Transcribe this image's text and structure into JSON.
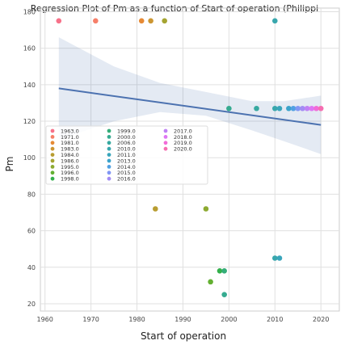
{
  "chart_data": {
    "type": "scatter",
    "title": "Regression Plot of Pm as a function of Start of operation (Philippi",
    "xlabel": "Start of operation",
    "ylabel": "Pm",
    "xlim": [
      1959,
      2024
    ],
    "ylim": [
      16,
      182
    ],
    "xticks": [
      1960,
      1970,
      1980,
      1990,
      2000,
      2010,
      2020
    ],
    "yticks": [
      20,
      40,
      60,
      80,
      100,
      120,
      140,
      160,
      180
    ],
    "grid": true,
    "legend_placement": "center-left",
    "series": [
      {
        "name": "1963.0",
        "color": "#f77189",
        "points": [
          [
            1963,
            175
          ]
        ]
      },
      {
        "name": "1971.0",
        "color": "#f67f69",
        "points": [
          [
            1971,
            175
          ]
        ]
      },
      {
        "name": "1981.0",
        "color": "#e68a35",
        "points": [
          [
            1981,
            175
          ]
        ]
      },
      {
        "name": "1983.0",
        "color": "#cc9632",
        "points": [
          [
            1983,
            175
          ]
        ]
      },
      {
        "name": "1984.0",
        "color": "#b89d31",
        "points": [
          [
            1984,
            72
          ]
        ]
      },
      {
        "name": "1986.0",
        "color": "#a5a431",
        "points": [
          [
            1986,
            175
          ]
        ]
      },
      {
        "name": "1995.0",
        "color": "#8daa31",
        "points": [
          [
            1995,
            72
          ]
        ]
      },
      {
        "name": "1996.0",
        "color": "#63b032",
        "points": [
          [
            1996,
            32
          ]
        ]
      },
      {
        "name": "1998.0",
        "color": "#33b04b",
        "points": [
          [
            1998,
            38
          ]
        ]
      },
      {
        "name": "1999.0",
        "color": "#35ad79",
        "points": [
          [
            1999,
            38
          ]
        ]
      },
      {
        "name": "2000.0",
        "color": "#36ab90",
        "points": [
          [
            2000,
            127
          ],
          [
            1999,
            25
          ]
        ]
      },
      {
        "name": "2006.0",
        "color": "#37a9a0",
        "points": [
          [
            2006,
            127
          ]
        ]
      },
      {
        "name": "2010.0",
        "color": "#38a7ad",
        "points": [
          [
            2010,
            175
          ],
          [
            2010,
            127
          ],
          [
            2010,
            45
          ]
        ]
      },
      {
        "name": "2011.0",
        "color": "#39a5bb",
        "points": [
          [
            2011,
            127
          ],
          [
            2011,
            45
          ]
        ]
      },
      {
        "name": "2013.0",
        "color": "#3ba3cb",
        "points": [
          [
            2013,
            127
          ]
        ]
      },
      {
        "name": "2014.0",
        "color": "#50a0e3",
        "points": [
          [
            2014,
            127
          ]
        ]
      },
      {
        "name": "2015.0",
        "color": "#8197f4",
        "points": [
          [
            2015,
            127
          ]
        ]
      },
      {
        "name": "2016.0",
        "color": "#a38cf4",
        "points": [
          [
            2016,
            127
          ]
        ]
      },
      {
        "name": "2017.0",
        "color": "#bf82f4",
        "points": [
          [
            2017,
            127
          ]
        ]
      },
      {
        "name": "2018.0",
        "color": "#de76f4",
        "points": [
          [
            2018,
            127
          ]
        ]
      },
      {
        "name": "2019.0",
        "color": "#f26bd8",
        "points": [
          [
            2019,
            127
          ]
        ]
      },
      {
        "name": "2020.0",
        "color": "#f56eb1",
        "points": [
          [
            2020,
            127
          ]
        ]
      }
    ],
    "regression": {
      "color": "#4c72b0",
      "band_color": "#4c72b0",
      "line": [
        [
          1963,
          138
        ],
        [
          2020,
          118
        ]
      ],
      "band": [
        {
          "x": 1963,
          "lo": 110,
          "hi": 166
        },
        {
          "x": 1975,
          "lo": 120,
          "hi": 150
        },
        {
          "x": 1985,
          "lo": 125,
          "hi": 141
        },
        {
          "x": 1995,
          "lo": 123,
          "hi": 136
        },
        {
          "x": 2005,
          "lo": 115,
          "hi": 131
        },
        {
          "x": 2012,
          "lo": 109,
          "hi": 131
        },
        {
          "x": 2020,
          "lo": 102,
          "hi": 134
        }
      ]
    }
  }
}
